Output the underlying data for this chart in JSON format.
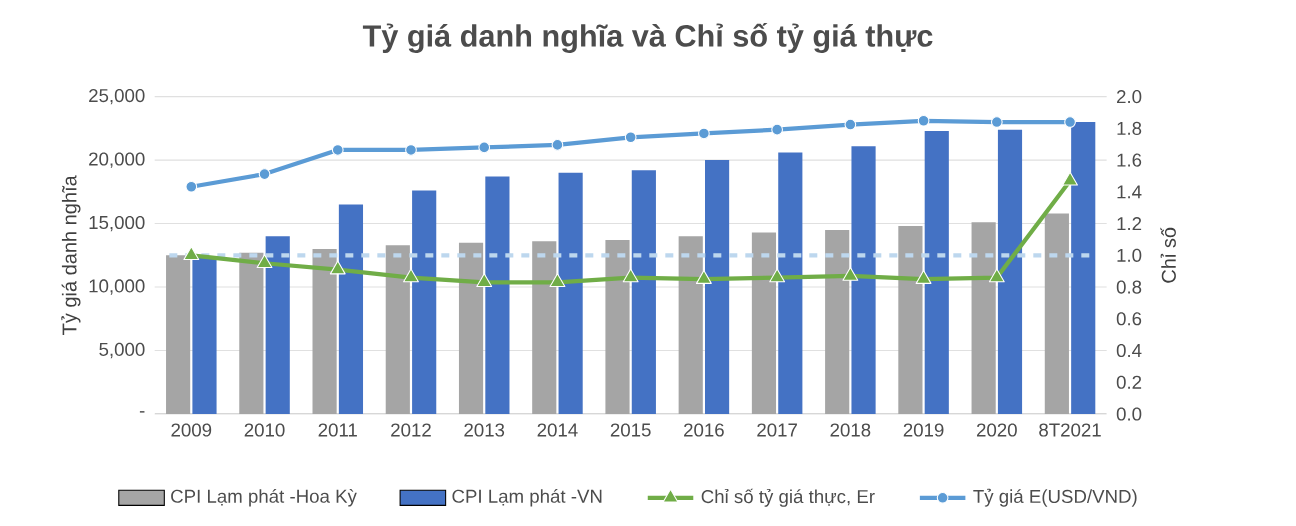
{
  "chart_data": {
    "type": "bar",
    "title": "Tỷ giá danh nghĩa và Chỉ số tỷ giá thực",
    "ylabel": "Tỷ giá danh nghĩa",
    "y2label": "Chỉ số",
    "categories": [
      "2009",
      "2010",
      "2011",
      "2012",
      "2013",
      "2014",
      "2015",
      "2016",
      "2017",
      "2018",
      "2019",
      "2020",
      "8T2021"
    ],
    "series": [
      {
        "name": "CPI Lạm phát -Hoa Kỳ",
        "color": "#a5a5a5",
        "values": [
          12500,
          12700,
          13000,
          13300,
          13500,
          13600,
          13700,
          14000,
          14300,
          14500,
          14800,
          15100,
          15800
        ]
      },
      {
        "name": "CPI Lạm phát -VN",
        "color": "#4472c4",
        "values": [
          12400,
          14000,
          16500,
          17600,
          18700,
          19000,
          19200,
          20000,
          20600,
          21100,
          22300,
          22400,
          23000
        ]
      },
      {
        "name": "Chỉ số tỷ giá thực, Er",
        "type": "line",
        "axis": "y2",
        "marker": "triangle",
        "color": "#70ad47",
        "values": [
          1.0,
          0.95,
          0.91,
          0.86,
          0.83,
          0.83,
          0.86,
          0.85,
          0.86,
          0.87,
          0.85,
          0.86,
          1.47
        ]
      },
      {
        "name": "Tỷ giá E(USD/VND)",
        "type": "line",
        "marker": "circle",
        "color": "#5b9bd5",
        "values": [
          17900,
          18900,
          20800,
          20800,
          21000,
          21200,
          21800,
          22100,
          22400,
          22800,
          23100,
          23000,
          23000
        ]
      }
    ],
    "ylim": [
      0,
      25000
    ],
    "yticks": [
      {
        "value": 0,
        "label": "-"
      },
      {
        "value": 5000,
        "label": "5,000"
      },
      {
        "value": 10000,
        "label": "10,000"
      },
      {
        "value": 15000,
        "label": "15,000"
      },
      {
        "value": 20000,
        "label": "20,000"
      },
      {
        "value": 25000,
        "label": "25,000"
      }
    ],
    "y2lim": [
      0,
      2
    ],
    "y2ticks": [
      {
        "value": 0,
        "label": "0.0"
      },
      {
        "value": 0.2,
        "label": "0.2"
      },
      {
        "value": 0.4,
        "label": "0.4"
      },
      {
        "value": 0.6,
        "label": "0.6"
      },
      {
        "value": 0.8,
        "label": "0.8"
      },
      {
        "value": 1,
        "label": "1.0"
      },
      {
        "value": 1.2,
        "label": "1.2"
      },
      {
        "value": 1.4,
        "label": "1.4"
      },
      {
        "value": 1.6,
        "label": "1.6"
      },
      {
        "value": 1.8,
        "label": "1.8"
      },
      {
        "value": 2,
        "label": "2.0"
      }
    ],
    "ref_lines": [
      {
        "axis": "y2",
        "value": 1,
        "color": "#bdd7ee",
        "line_style": "dashed"
      }
    ],
    "grid": "y",
    "legend": "bottom"
  }
}
